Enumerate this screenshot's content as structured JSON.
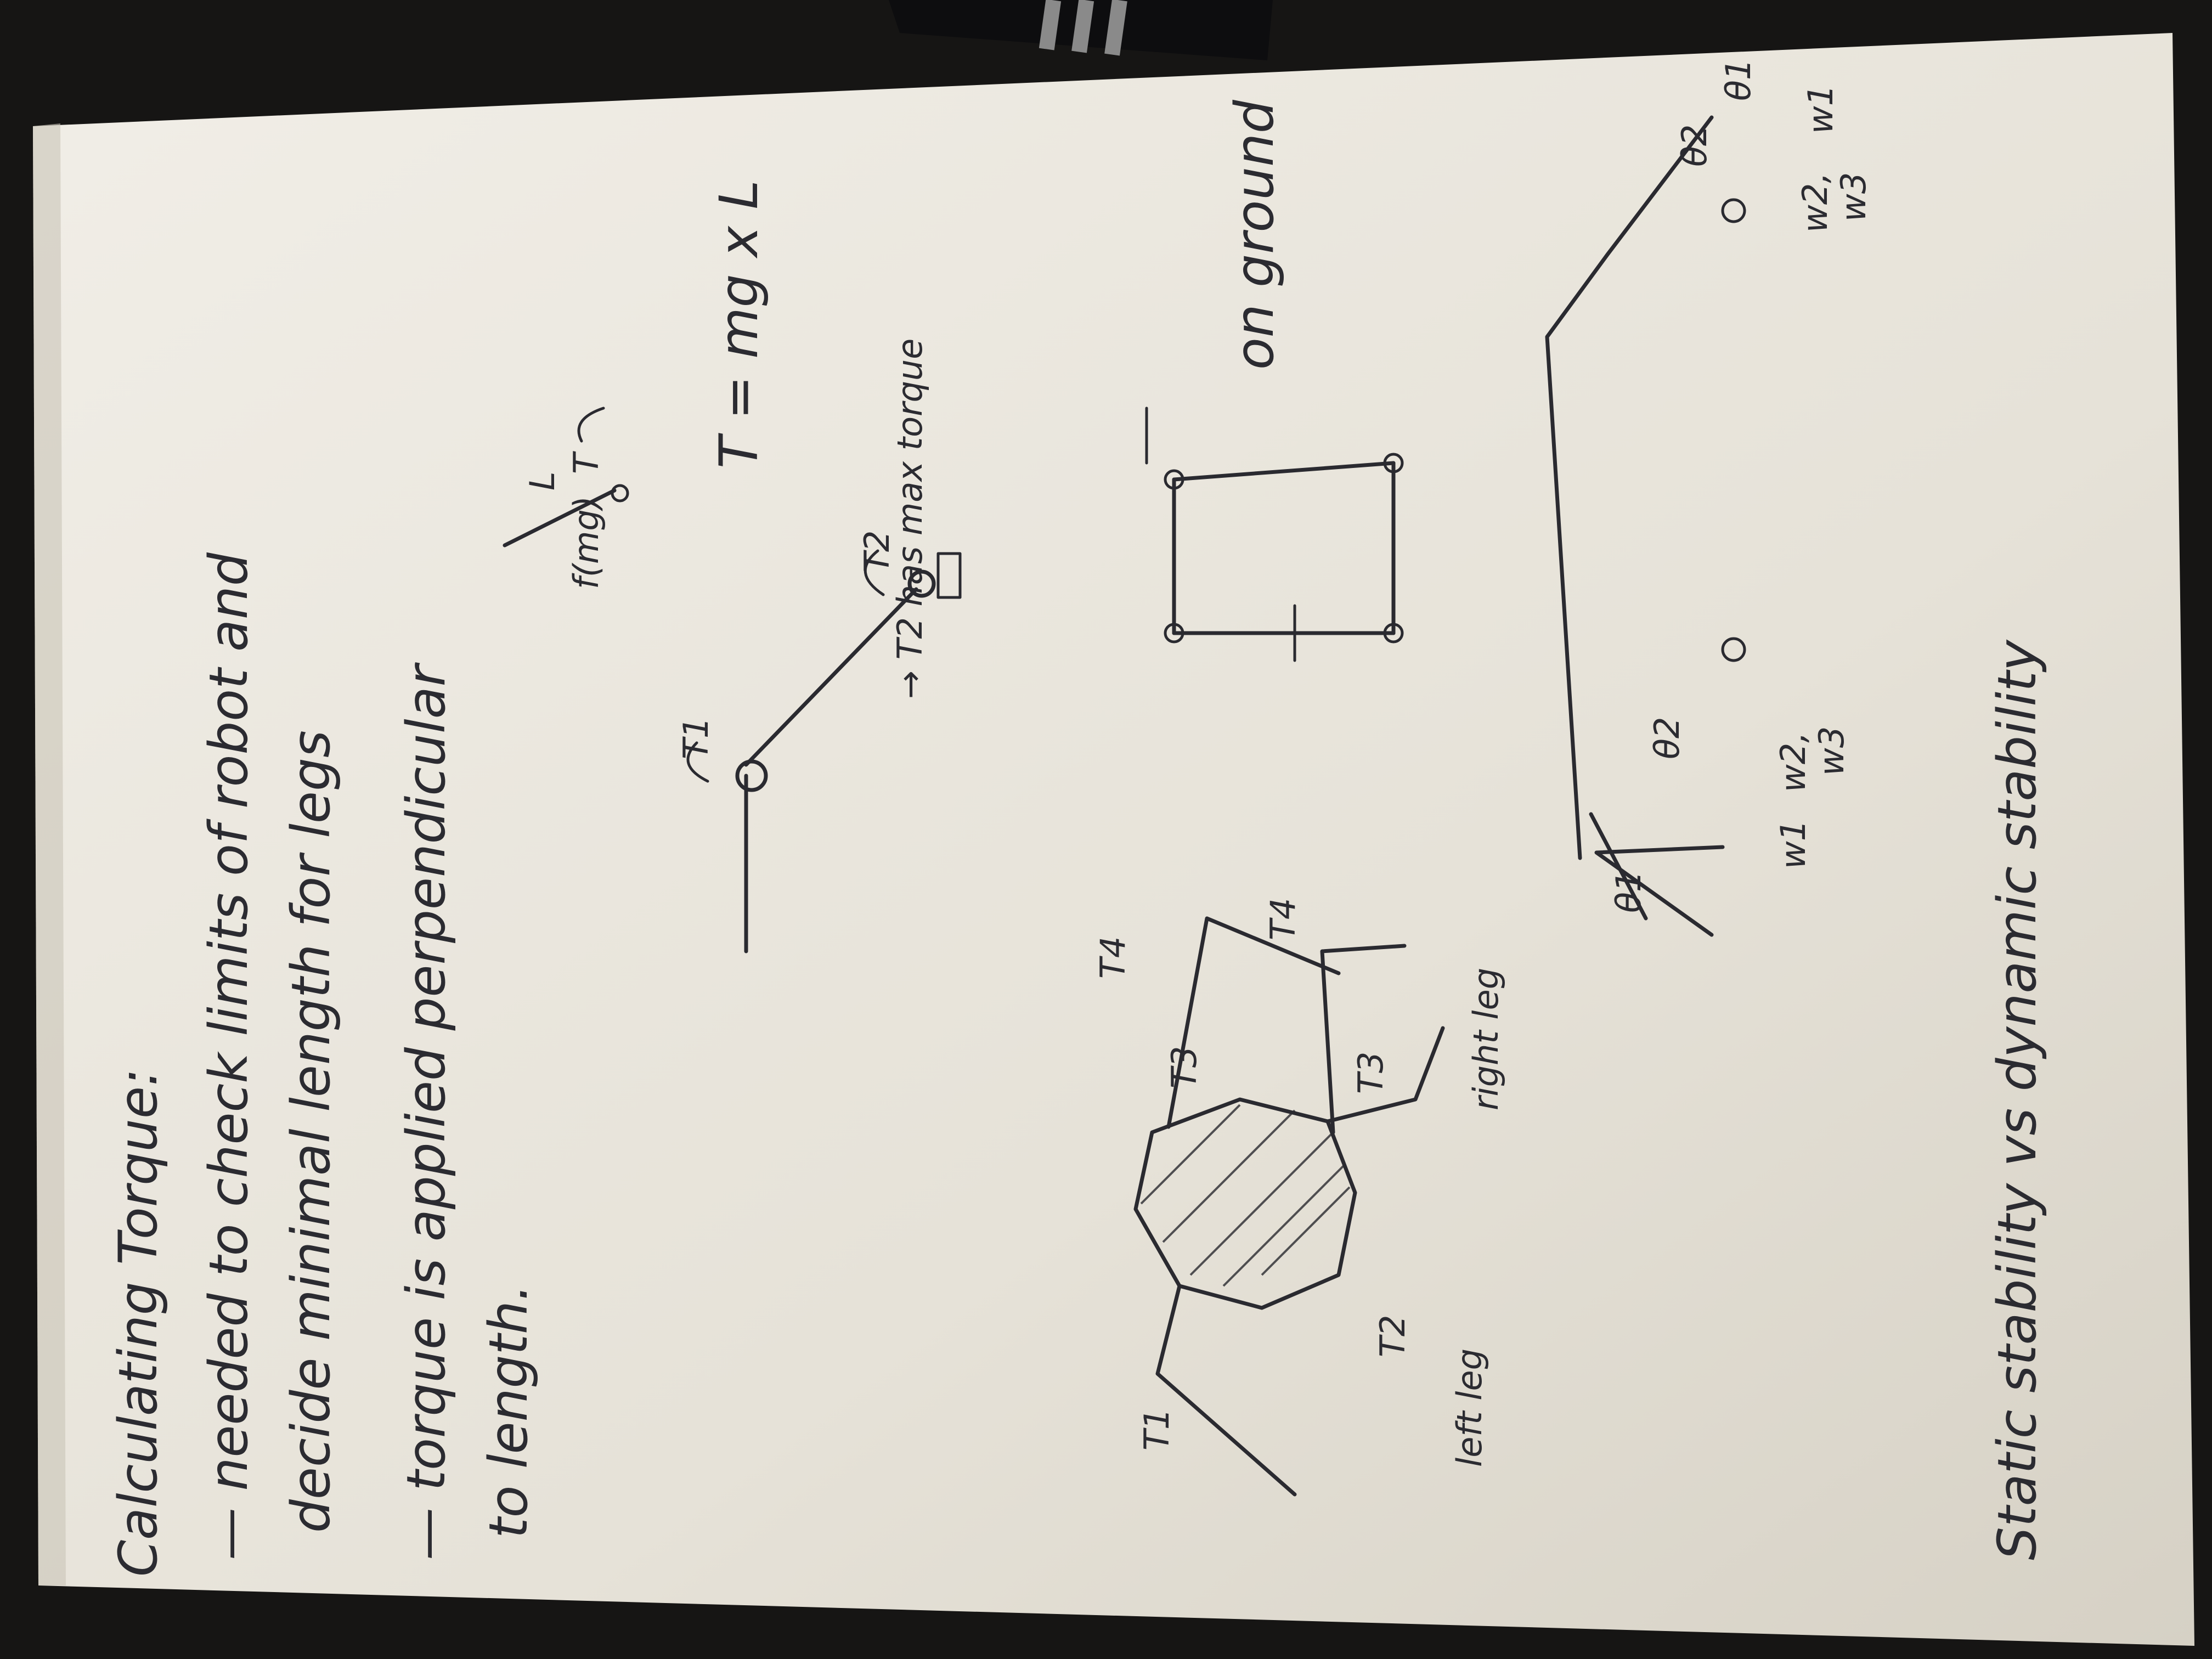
{
  "image": {
    "kind": "photo of handwritten notebook page (rotated 90° counter-clockwise)",
    "colors": {
      "background": "#161514",
      "paper": "#e9e5dc",
      "ink": "#2a2a30",
      "pen_body": "#0d0d0f",
      "pen_band": "#8a8a8a"
    }
  },
  "notes": {
    "title": "Calculating Torque:",
    "line1": "— needed to check limits of robot and",
    "line2": "decide minimal length for legs",
    "line3": "— torque is applied perpendicular",
    "line4": "to length.",
    "footer": "Static stability vs dynamic stability"
  },
  "arm_diagram": {
    "t1_label": "T1",
    "t2_label": "T2"
  },
  "lever_sketch": {
    "t_label": "T",
    "l_label": "L",
    "force_label": "f(mg)",
    "formula": "T = mg x L",
    "max_note": "→ T2 has max torque"
  },
  "robot_top_view": {
    "left_labels": [
      "T1",
      "T2",
      "left leg"
    ],
    "right_labels": [
      "T4",
      "T3",
      "T4",
      "T3",
      "right leg"
    ]
  },
  "ground_sketch": {
    "label": "on ground"
  },
  "stability_diagram": {
    "left_angles": [
      "θ1",
      "θ2"
    ],
    "left_weights": [
      "w1",
      "w2,",
      "w3"
    ],
    "right_angles": [
      "θ1",
      "θ2"
    ],
    "right_weights": [
      "w1",
      "w2,",
      "w3"
    ]
  }
}
